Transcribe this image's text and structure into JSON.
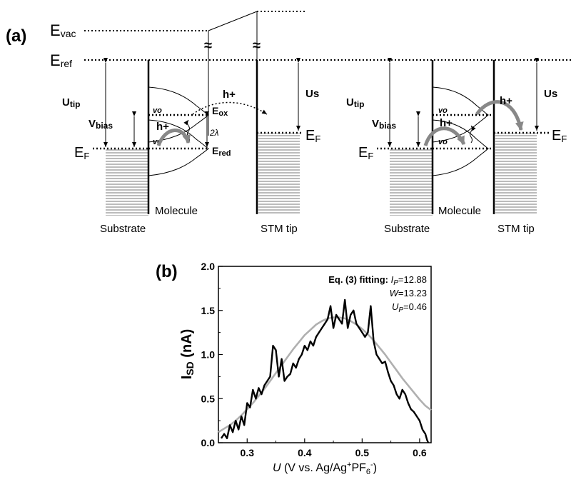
{
  "panel_a": {
    "label": "(a)",
    "evac": {
      "main": "E",
      "sub": "vac"
    },
    "eref": {
      "main": "E",
      "sub": "ref"
    },
    "ef": {
      "main": "E",
      "sub": "F"
    },
    "utip": {
      "main": "U",
      "sub": "tip"
    },
    "vbias": {
      "main": "V",
      "sub": "bias"
    },
    "us": "Us",
    "hplus": "h+",
    "v0": "vo",
    "eox": {
      "main": "E",
      "sub": "ox"
    },
    "ered": {
      "main": "E",
      "sub": "red"
    },
    "two_lambda": "2λ",
    "break_mark": "≈",
    "molecule": "Molecule",
    "substrate": "Substrate",
    "stm_tip": "STM tip"
  },
  "panel_b": {
    "label": "(b)",
    "ylabel": {
      "main": "I",
      "sub": "SD",
      "rest": " (nA)"
    },
    "xlabel": {
      "var": "U",
      "text": " (V vs. Ag/Ag",
      "sup1": "+",
      "mid": "PF",
      "sub": "6",
      "sup2": "-",
      "end": ")"
    },
    "fit_annotation": {
      "title": "Eq. (3) fitting: ",
      "ip_var": "I",
      "ip_sub": "P",
      "ip_val": "=12.88",
      "w_var": "W",
      "w_val": "=13.23",
      "up_var": "U",
      "up_sub": "P",
      "up_val": "=0.46"
    }
  },
  "chart_data": {
    "type": "line",
    "xlim": [
      0.25,
      0.62
    ],
    "ylim": [
      0.0,
      2.0
    ],
    "xticks": [
      0.3,
      0.4,
      0.5,
      0.6
    ],
    "xtick_labels": [
      "0.3",
      "0.4",
      "0.5",
      "0.6"
    ],
    "yticks": [
      0.0,
      0.5,
      1.0,
      1.5,
      2.0
    ],
    "ytick_labels": [
      "0.0",
      "0.5",
      "1.0",
      "1.5",
      "2.0"
    ],
    "series": [
      {
        "color": "#000000",
        "x": [
          0.255,
          0.26,
          0.265,
          0.27,
          0.275,
          0.28,
          0.285,
          0.29,
          0.295,
          0.3,
          0.305,
          0.31,
          0.315,
          0.32,
          0.325,
          0.33,
          0.335,
          0.34,
          0.345,
          0.35,
          0.355,
          0.36,
          0.365,
          0.37,
          0.375,
          0.38,
          0.385,
          0.39,
          0.395,
          0.4,
          0.405,
          0.41,
          0.415,
          0.42,
          0.425,
          0.43,
          0.435,
          0.44,
          0.445,
          0.45,
          0.455,
          0.46,
          0.465,
          0.47,
          0.475,
          0.48,
          0.485,
          0.49,
          0.495,
          0.5,
          0.505,
          0.51,
          0.515,
          0.52,
          0.525,
          0.53,
          0.535,
          0.54,
          0.545,
          0.55,
          0.555,
          0.56,
          0.565,
          0.57,
          0.575,
          0.58,
          0.585,
          0.59,
          0.595,
          0.6,
          0.605,
          0.61,
          0.613,
          0.615
        ],
        "y": [
          0.05,
          0.1,
          0.05,
          0.2,
          0.12,
          0.25,
          0.15,
          0.3,
          0.2,
          0.45,
          0.4,
          0.6,
          0.5,
          0.62,
          0.55,
          0.65,
          0.7,
          0.75,
          1.1,
          1.05,
          0.75,
          0.95,
          0.7,
          0.75,
          0.78,
          0.9,
          0.85,
          0.95,
          1.0,
          1.1,
          1.05,
          1.15,
          1.1,
          1.2,
          1.25,
          1.3,
          1.35,
          1.4,
          1.55,
          1.3,
          1.45,
          1.4,
          1.35,
          1.62,
          1.3,
          1.45,
          1.5,
          1.35,
          1.3,
          1.25,
          1.2,
          1.25,
          1.55,
          1.15,
          1.0,
          0.95,
          0.9,
          0.92,
          0.8,
          0.7,
          0.65,
          0.55,
          0.5,
          0.6,
          0.55,
          0.45,
          0.38,
          0.35,
          0.3,
          0.25,
          0.15,
          0.1,
          0.03,
          0.0
        ]
      },
      {
        "color": "#b0b0b0",
        "x": [
          0.25,
          0.26,
          0.27,
          0.28,
          0.29,
          0.3,
          0.31,
          0.32,
          0.33,
          0.34,
          0.35,
          0.36,
          0.37,
          0.38,
          0.39,
          0.4,
          0.41,
          0.42,
          0.43,
          0.44,
          0.45,
          0.46,
          0.47,
          0.48,
          0.49,
          0.5,
          0.51,
          0.52,
          0.53,
          0.54,
          0.55,
          0.56,
          0.57,
          0.58,
          0.59,
          0.6,
          0.61,
          0.62
        ],
        "y": [
          0.12,
          0.16,
          0.2,
          0.25,
          0.31,
          0.38,
          0.45,
          0.53,
          0.61,
          0.7,
          0.79,
          0.88,
          0.97,
          1.06,
          1.14,
          1.22,
          1.28,
          1.34,
          1.38,
          1.41,
          1.42,
          1.42,
          1.41,
          1.38,
          1.34,
          1.29,
          1.23,
          1.16,
          1.08,
          1.0,
          0.91,
          0.82,
          0.73,
          0.65,
          0.57,
          0.49,
          0.42,
          0.37
        ]
      }
    ]
  }
}
